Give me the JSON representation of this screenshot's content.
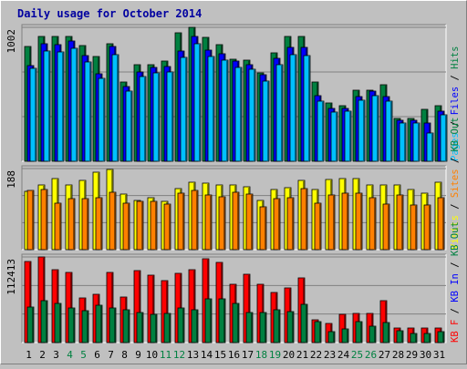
{
  "chart_data": {
    "type": "bar",
    "title": "Daily usage for October 2014",
    "days": [
      "1",
      "2",
      "3",
      "4",
      "5",
      "6",
      "7",
      "8",
      "9",
      "10",
      "11",
      "12",
      "13",
      "14",
      "15",
      "16",
      "17",
      "18",
      "19",
      "20",
      "21",
      "22",
      "23",
      "24",
      "25",
      "26",
      "27",
      "28",
      "29",
      "30",
      "31"
    ],
    "weekend_days": [
      "4",
      "5",
      "11",
      "12",
      "18",
      "19",
      "25",
      "26"
    ],
    "panels": [
      {
        "id": "pages",
        "max_label": "1002",
        "max_value": 1002,
        "legend": [
          {
            "text": "Pages",
            "color": "#00c0ff"
          },
          {
            "text": " / ",
            "color": "#000000"
          },
          {
            "text": "Files",
            "color": "#0000ff"
          },
          {
            "text": " / ",
            "color": "#000000"
          },
          {
            "text": "Hits",
            "color": "#008040"
          }
        ],
        "series": [
          {
            "name": "Hits",
            "color": "#008040",
            "values": [
              862,
              936,
              936,
              936,
              868,
              786,
              882,
              593,
              722,
              722,
              749,
              960,
              1002,
              929,
              875,
              766,
              759,
              658,
              813,
              936,
              936,
              593,
              436,
              416,
              532,
              532,
              572,
              321,
              321,
              388,
              416
            ]
          },
          {
            "name": "Files",
            "color": "#0000ff",
            "values": [
              718,
              882,
              875,
              902,
              793,
              657,
              859,
              558,
              670,
              704,
              711,
              823,
              936,
              834,
              806,
              753,
              725,
              646,
              772,
              850,
              850,
              488,
              398,
              395,
              487,
              526,
              487,
              309,
              309,
              286,
              378
            ]
          },
          {
            "name": "Pages",
            "color": "#00c0ff",
            "values": [
              695,
              828,
              821,
              848,
              745,
              623,
              800,
              522,
              632,
              660,
              671,
              778,
              880,
              787,
              757,
              700,
              686,
              603,
              721,
              800,
              791,
              452,
              370,
              372,
              455,
              490,
              450,
              287,
              287,
              210,
              350
            ]
          }
        ]
      },
      {
        "id": "visits",
        "max_label": "188",
        "max_value": 188,
        "legend": [
          {
            "text": "Visits",
            "color": "#ffff00"
          },
          {
            "text": " / ",
            "color": "#000000"
          },
          {
            "text": "Sites",
            "color": "#ff8000"
          },
          {
            "text": " / ",
            "color": "#000000"
          },
          {
            "text": "KB Out",
            "color": "#008040"
          }
        ],
        "series": [
          {
            "name": "Visits",
            "color": "#ffff00",
            "values": [
              135,
              150,
              165,
              150,
              160,
              180,
              186,
              128,
              114,
              120,
              113,
              142,
              157,
              155,
              150,
              150,
              145,
              115,
              140,
              143,
              160,
              140,
              162,
              164,
              164,
              150,
              150,
              150,
              140,
              130,
              157
            ]
          },
          {
            "name": "Sites",
            "color": "#ff8000",
            "values": [
              137,
              139,
              108,
              119,
              118,
              120,
              133,
              108,
              111,
              111,
              105,
              132,
              138,
              127,
              123,
              134,
              128,
              100,
              119,
              120,
              142,
              107,
              126,
              131,
              130,
              120,
              105,
              127,
              104,
              104,
              120
            ]
          }
        ]
      },
      {
        "id": "kbf",
        "max_label": "112413",
        "max_value": 112413,
        "legend": [
          {
            "text": "KB F",
            "color": "#ff0000"
          },
          {
            "text": " / ",
            "color": "#000000"
          },
          {
            "text": "KB In",
            "color": "#0000ff"
          },
          {
            "text": " / ",
            "color": "#000000"
          },
          {
            "text": "KB Out",
            "color": "#008040"
          }
        ],
        "series": [
          {
            "name": "KB F",
            "color": "#ff0000",
            "values": [
              107000,
              112413,
              96000,
              92000,
              59000,
              63000,
              92000,
              60000,
              95000,
              88000,
              81000,
              91000,
              96000,
              110000,
              105000,
              77000,
              90000,
              76000,
              66000,
              72000,
              85000,
              30000,
              25000,
              37000,
              38000,
              38000,
              55000,
              19000,
              19000,
              19000,
              19000
            ]
          },
          {
            "name": "KB Out",
            "color": "#008040",
            "values": [
              47000,
              55000,
              52000,
              46000,
              42000,
              49000,
              45000,
              43000,
              40000,
              37000,
              38000,
              45000,
              43000,
              58000,
              57000,
              51000,
              40000,
              40000,
              43000,
              41000,
              50000,
              28000,
              14000,
              18000,
              28000,
              22000,
              26000,
              15000,
              12000,
              12000,
              14000
            ]
          }
        ]
      }
    ]
  }
}
